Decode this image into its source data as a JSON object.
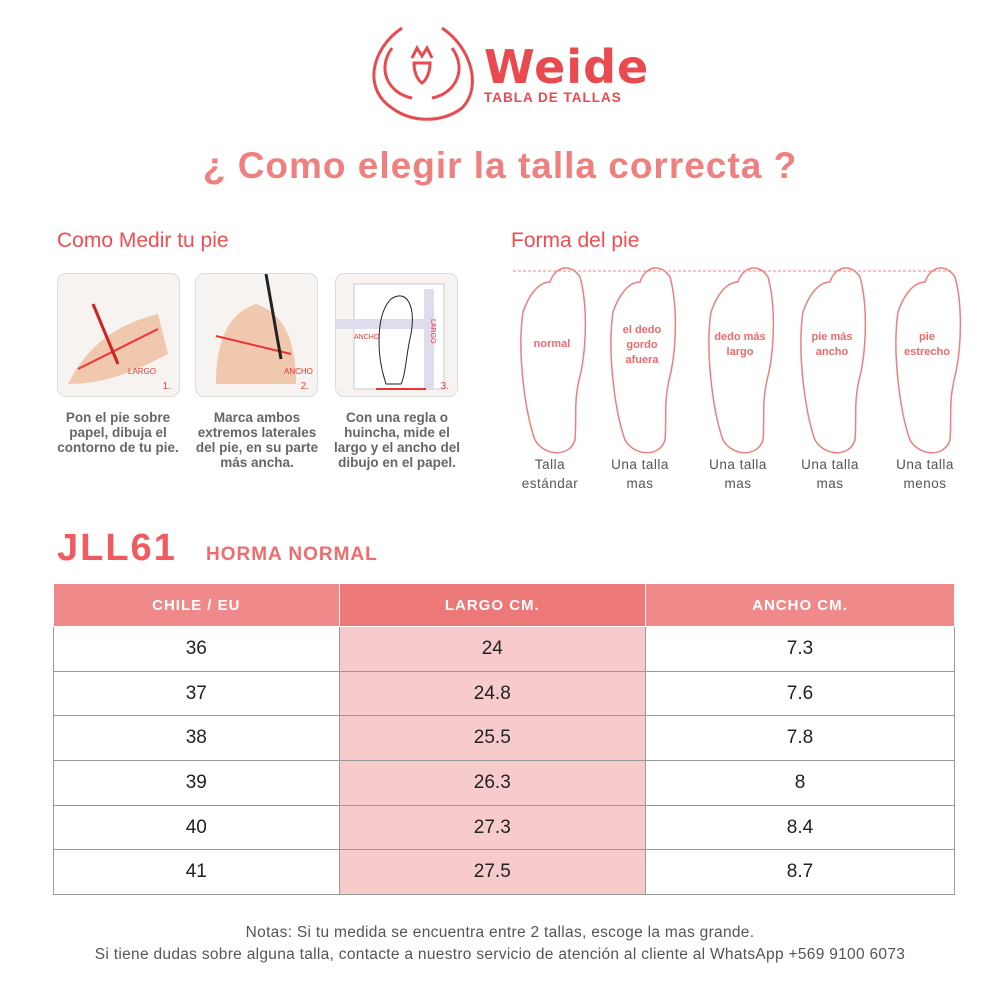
{
  "brand": {
    "name": "Weide",
    "tagline": "TABLA DE TALLAS",
    "accent": "#e84a4f"
  },
  "headline": "¿ Como elegir la talla correcta ?",
  "measure": {
    "title": "Como Medir tu pie",
    "steps": [
      {
        "num": "1.",
        "label": "LARGO",
        "caption": "Pon el pie sobre papel, dibuja el contorno de tu pie."
      },
      {
        "num": "2.",
        "label": "ANCHO",
        "caption": "Marca ambos extremos laterales del pie, en su parte más ancha."
      },
      {
        "num": "3.",
        "label": "ANCHO",
        "label2": "LARGO",
        "caption": "Con una regla o huincha, mide el largo y el ancho del dibujo en el papel."
      }
    ]
  },
  "shapes": {
    "title": "Forma del pie",
    "items": [
      {
        "label": "normal",
        "caption1": "Talla",
        "caption2": "estándar"
      },
      {
        "label": "el dedo gordo afuera",
        "caption1": "Una talla",
        "caption2": "mas"
      },
      {
        "label": "dedo más largo",
        "caption1": "Una talla",
        "caption2": "mas"
      },
      {
        "label": "pie más ancho",
        "caption1": "Una talla",
        "caption2": "mas"
      },
      {
        "label": "pie estrecho",
        "caption1": "Una talla",
        "caption2": "menos"
      }
    ]
  },
  "model": {
    "code": "JLL61",
    "horma": "HORMA NORMAL"
  },
  "table": {
    "headers": [
      "CHILE / EU",
      "LARGO CM.",
      "ANCHO CM."
    ],
    "rows": [
      [
        "36",
        "24",
        "7.3"
      ],
      [
        "37",
        "24.8",
        "7.6"
      ],
      [
        "38",
        "25.5",
        "7.8"
      ],
      [
        "39",
        "26.3",
        "8"
      ],
      [
        "40",
        "27.3",
        "8.4"
      ],
      [
        "41",
        "27.5",
        "8.7"
      ]
    ]
  },
  "notes": [
    "Notas: Si tu medida se encuentra entre 2 tallas, escoge la mas grande.",
    "Si tiene dudas sobre alguna talla, contacte a nuestro servicio de atención al cliente al WhatsApp +569 9100 6073"
  ]
}
